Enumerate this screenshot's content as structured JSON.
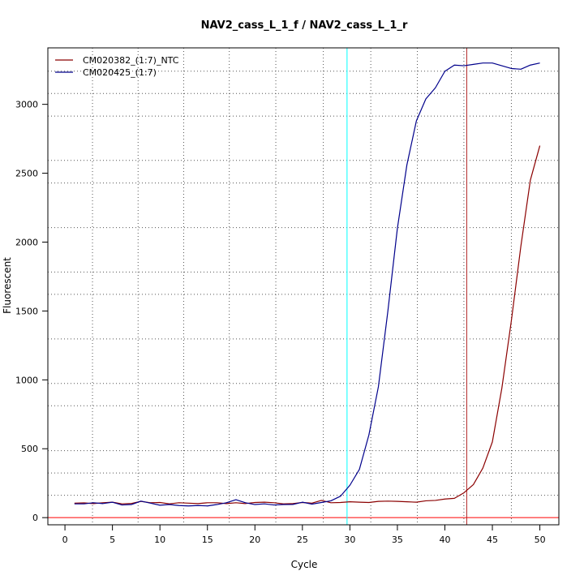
{
  "chart_data": {
    "type": "line",
    "title": "NAV2_cass_L_1_f / NAV2_cass_L_1_r",
    "xlabel": "Cycle",
    "ylabel": "Fluorescent",
    "xlim": [
      -1.8,
      52
    ],
    "ylim": [
      -52,
      3410
    ],
    "xticks": [
      0,
      5,
      10,
      15,
      20,
      25,
      30,
      35,
      40,
      45,
      50
    ],
    "yticks": [
      0,
      500,
      1000,
      1500,
      2000,
      2500,
      3000
    ],
    "grid": true,
    "grid_x": [
      2.9,
      7.7,
      12.5,
      17.3,
      22.2,
      27.2,
      32.2,
      37.1,
      42.0,
      47.0
    ],
    "grid_y": [
      162,
      324,
      486,
      812,
      974,
      1297,
      1621,
      1783,
      2105,
      2429,
      2593,
      2915,
      3079,
      3241
    ],
    "legend_position": "top-left",
    "x": [
      1,
      2,
      3,
      4,
      5,
      6,
      7,
      8,
      9,
      10,
      11,
      12,
      13,
      14,
      15,
      16,
      17,
      18,
      19,
      20,
      21,
      22,
      23,
      24,
      25,
      26,
      27,
      28,
      29,
      30,
      31,
      32,
      33,
      34,
      35,
      36,
      37,
      38,
      39,
      40,
      41,
      42,
      43,
      44,
      45,
      46,
      47,
      48,
      49,
      50
    ],
    "series": [
      {
        "name": "CM020382_(1:7)_NTC",
        "color": "#8b0000",
        "values": [
          105,
          107,
          102,
          108,
          112,
          100,
          103,
          118,
          108,
          110,
          100,
          108,
          105,
          102,
          108,
          108,
          102,
          108,
          102,
          110,
          112,
          108,
          100,
          102,
          110,
          105,
          125,
          108,
          110,
          115,
          112,
          110,
          118,
          120,
          118,
          115,
          112,
          122,
          125,
          135,
          140,
          180,
          240,
          360,
          550,
          940,
          1430,
          1970,
          2450,
          2700
        ]
      },
      {
        "name": "CM020425_(1:7)",
        "color": "#00008b",
        "values": [
          100,
          100,
          108,
          102,
          112,
          92,
          95,
          120,
          105,
          90,
          95,
          88,
          85,
          88,
          85,
          95,
          108,
          130,
          108,
          95,
          100,
          92,
          95,
          96,
          112,
          98,
          110,
          122,
          155,
          235,
          350,
          600,
          950,
          1500,
          2100,
          2560,
          2880,
          3040,
          3120,
          3240,
          3285,
          3280,
          3290,
          3300,
          3300,
          3280,
          3260,
          3255,
          3285,
          3300
        ]
      }
    ],
    "reference_lines": {
      "vertical": [
        {
          "x": 29.7,
          "color": "#00ffff"
        },
        {
          "x": 42.3,
          "color": "#b22222"
        }
      ],
      "horizontal": [
        {
          "y": 0,
          "color": "#ff0000"
        }
      ]
    }
  }
}
